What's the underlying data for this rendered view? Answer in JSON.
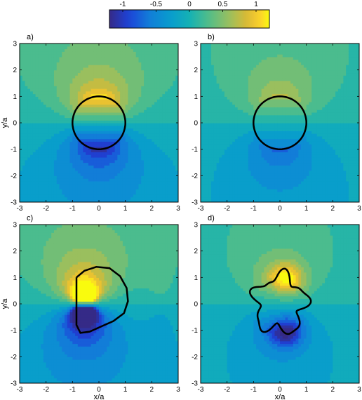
{
  "chart_data": {
    "type": "heatmap",
    "colorbar": {
      "range": [
        -1.2,
        1.2
      ],
      "ticks": [
        -1,
        -0.5,
        0,
        0.5,
        1
      ],
      "tick_labels": [
        "-1",
        "-0.5",
        "0",
        "0.5",
        "1"
      ]
    },
    "panels": [
      {
        "label": "a)",
        "boundary": "circle",
        "xlim": [
          -3,
          3
        ],
        "ylim": [
          -3,
          3
        ],
        "xlabel": "",
        "ylabel": "y/a",
        "show_x_tick_labels": true,
        "show_y_tick_labels": true
      },
      {
        "label": "b)",
        "boundary": "circle",
        "xlim": [
          -3,
          3
        ],
        "ylim": [
          -3,
          3
        ],
        "xlabel": "",
        "ylabel": "",
        "show_x_tick_labels": true,
        "show_y_tick_labels": true
      },
      {
        "label": "c)",
        "boundary": "bulged",
        "xlim": [
          -3,
          3
        ],
        "ylim": [
          -3,
          3
        ],
        "xlabel": "x/a",
        "ylabel": "y/a",
        "show_x_tick_labels": true,
        "show_y_tick_labels": true
      },
      {
        "label": "d)",
        "boundary": "wavy",
        "xlim": [
          -3,
          3
        ],
        "ylim": [
          -3,
          3
        ],
        "xlabel": "x/a",
        "ylabel": "",
        "show_x_tick_labels": true,
        "show_y_tick_labels": true
      }
    ],
    "x_ticks": [
      -3,
      -2,
      -1,
      0,
      1,
      2,
      3
    ],
    "y_ticks": [
      -3,
      -2,
      -1,
      0,
      1,
      2,
      3
    ],
    "colormap": "parula"
  }
}
